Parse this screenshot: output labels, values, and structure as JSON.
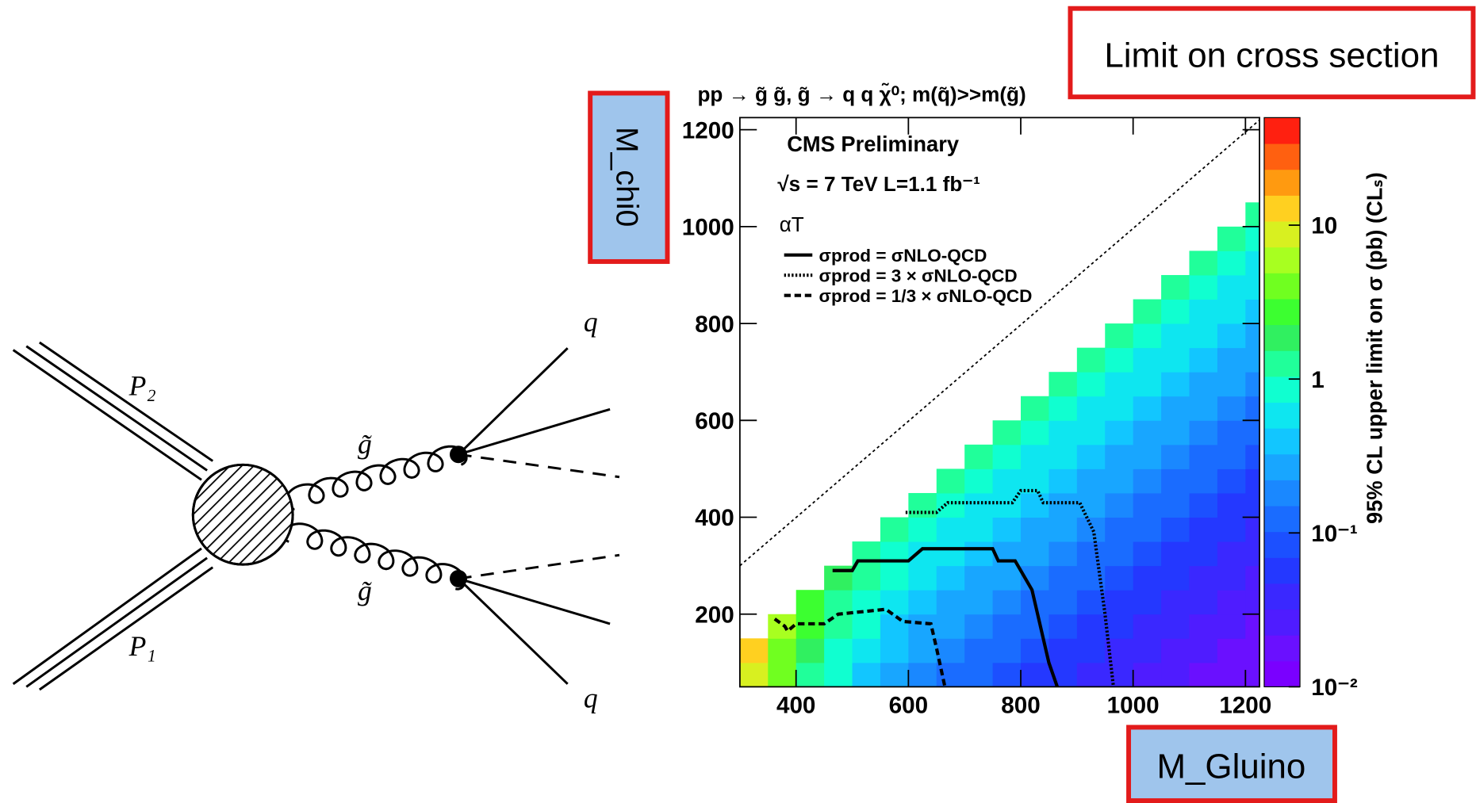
{
  "chart_data": {
    "type": "heatmap",
    "title": "pp → g̃ g̃, g̃ → q q χ̃⁰; m(q̃)>>m(g̃)",
    "xlim": [
      300,
      1225
    ],
    "ylim": [
      50,
      1225
    ],
    "xticks": [
      400,
      600,
      800,
      1000,
      1200
    ],
    "yticks": [
      200,
      400,
      600,
      800,
      1000,
      1200
    ],
    "x_edges": [
      300,
      350,
      400,
      450,
      500,
      550,
      600,
      650,
      700,
      750,
      800,
      850,
      900,
      950,
      1000,
      1050,
      1100,
      1150,
      1200,
      1225
    ],
    "y_edges": [
      50,
      100,
      150,
      200,
      250,
      300,
      350,
      400,
      450,
      500,
      550,
      600,
      650,
      700,
      750,
      800,
      850,
      900,
      950,
      1000,
      1050
    ],
    "z": [
      [
        9.5,
        3.7,
        1.4,
        0.71,
        0.44,
        0.27,
        0.19,
        0.14,
        0.11,
        0.087,
        0.068,
        0.052,
        0.041,
        0.032,
        0.025,
        0.022,
        0.019,
        0.017,
        0.015
      ],
      [
        12,
        4.8,
        1.9,
        0.91,
        0.56,
        0.35,
        0.24,
        0.19,
        0.14,
        0.11,
        0.087,
        0.068,
        0.052,
        0.041,
        0.032,
        0.025,
        0.022,
        0.019,
        0.017
      ],
      [
        null,
        6.2,
        2.4,
        1.2,
        0.72,
        0.45,
        0.31,
        0.24,
        0.19,
        0.14,
        0.11,
        0.087,
        0.068,
        0.052,
        0.041,
        0.032,
        0.025,
        0.022,
        0.019
      ],
      [
        null,
        null,
        3.1,
        1.5,
        0.93,
        0.58,
        0.4,
        0.31,
        0.24,
        0.19,
        0.14,
        0.11,
        0.087,
        0.068,
        0.052,
        0.041,
        0.032,
        0.025,
        0.022
      ],
      [
        null,
        null,
        null,
        1.9,
        1.2,
        0.74,
        0.51,
        0.4,
        0.31,
        0.24,
        0.19,
        0.14,
        0.11,
        0.087,
        0.068,
        0.052,
        0.041,
        0.032,
        0.025
      ],
      [
        null,
        null,
        null,
        null,
        1.5,
        0.95,
        0.66,
        0.51,
        0.4,
        0.31,
        0.24,
        0.19,
        0.14,
        0.11,
        0.087,
        0.068,
        0.052,
        0.041,
        0.032
      ],
      [
        null,
        null,
        null,
        null,
        null,
        1.2,
        0.85,
        0.66,
        0.51,
        0.4,
        0.31,
        0.24,
        0.19,
        0.14,
        0.11,
        0.087,
        0.068,
        0.052,
        0.041
      ],
      [
        null,
        null,
        null,
        null,
        null,
        null,
        1.1,
        0.85,
        0.66,
        0.51,
        0.4,
        0.31,
        0.24,
        0.19,
        0.14,
        0.11,
        0.087,
        0.068,
        0.052
      ],
      [
        null,
        null,
        null,
        null,
        null,
        null,
        null,
        1.1,
        0.85,
        0.66,
        0.51,
        0.4,
        0.31,
        0.24,
        0.19,
        0.14,
        0.11,
        0.087,
        0.068
      ],
      [
        null,
        null,
        null,
        null,
        null,
        null,
        null,
        null,
        1.1,
        0.85,
        0.66,
        0.51,
        0.4,
        0.31,
        0.24,
        0.19,
        0.14,
        0.11,
        0.087
      ],
      [
        null,
        null,
        null,
        null,
        null,
        null,
        null,
        null,
        null,
        1.1,
        0.85,
        0.66,
        0.51,
        0.4,
        0.31,
        0.24,
        0.19,
        0.14,
        0.11
      ],
      [
        null,
        null,
        null,
        null,
        null,
        null,
        null,
        null,
        null,
        null,
        1.1,
        0.85,
        0.66,
        0.51,
        0.4,
        0.31,
        0.24,
        0.19,
        0.14
      ],
      [
        null,
        null,
        null,
        null,
        null,
        null,
        null,
        null,
        null,
        null,
        null,
        1.1,
        0.85,
        0.66,
        0.51,
        0.4,
        0.31,
        0.24,
        0.19
      ],
      [
        null,
        null,
        null,
        null,
        null,
        null,
        null,
        null,
        null,
        null,
        null,
        null,
        1.1,
        0.85,
        0.66,
        0.51,
        0.4,
        0.31,
        0.24
      ],
      [
        null,
        null,
        null,
        null,
        null,
        null,
        null,
        null,
        null,
        null,
        null,
        null,
        null,
        1.1,
        0.85,
        0.66,
        0.51,
        0.4,
        0.31
      ],
      [
        null,
        null,
        null,
        null,
        null,
        null,
        null,
        null,
        null,
        null,
        null,
        null,
        null,
        null,
        1.1,
        0.85,
        0.66,
        0.51,
        0.4
      ],
      [
        null,
        null,
        null,
        null,
        null,
        null,
        null,
        null,
        null,
        null,
        null,
        null,
        null,
        null,
        null,
        1.1,
        0.85,
        0.66,
        0.51
      ],
      [
        null,
        null,
        null,
        null,
        null,
        null,
        null,
        null,
        null,
        null,
        null,
        null,
        null,
        null,
        null,
        null,
        1.1,
        0.85,
        0.66
      ],
      [
        null,
        null,
        null,
        null,
        null,
        null,
        null,
        null,
        null,
        null,
        null,
        null,
        null,
        null,
        null,
        null,
        null,
        1.1,
        0.85
      ],
      [
        null,
        null,
        null,
        null,
        null,
        null,
        null,
        null,
        null,
        null,
        null,
        null,
        null,
        null,
        null,
        null,
        null,
        null,
        1.1
      ]
    ],
    "zlog": true,
    "zlim": [
      0.01,
      50
    ],
    "zticks": [
      10,
      1,
      {
        "value": 0.1,
        "label": "10⁻¹"
      },
      {
        "value": 0.01,
        "label": "10⁻²"
      }
    ],
    "zlabel": "95% CL upper limit on σ (pb) (CLₛ)",
    "palette": [
      "#7a00ff",
      "#6a10ff",
      "#4f1cff",
      "#3a28ff",
      "#2438ff",
      "#1c50ff",
      "#1a6cff",
      "#1a88ff",
      "#18a6ff",
      "#12c6ff",
      "#0ee6f0",
      "#10ffd0",
      "#20ff9a",
      "#30f060",
      "#3cff30",
      "#70ff20",
      "#a8ff20",
      "#d8f020",
      "#ffd020",
      "#ff9a10",
      "#ff6010",
      "#ff2010"
    ],
    "annotations": [
      "CMS Preliminary",
      "√s = 7 TeV L=1.1 fb⁻¹",
      "αT"
    ],
    "series": [
      {
        "name": "σprod = σNLO-QCD",
        "color": "#000000",
        "style": "solid",
        "x": [
          465,
          500,
          510,
          600,
          625,
          750,
          760,
          790,
          820,
          850,
          865
        ],
        "y": [
          290,
          290,
          310,
          310,
          335,
          335,
          310,
          310,
          250,
          100,
          50
        ]
      },
      {
        "name": "σprod = 3 × σNLO-QCD",
        "color": "#000000",
        "style": "dotted",
        "x": [
          595,
          650,
          670,
          785,
          800,
          830,
          840,
          905,
          930,
          950,
          965
        ],
        "y": [
          410,
          410,
          430,
          430,
          455,
          455,
          430,
          430,
          370,
          200,
          50
        ]
      },
      {
        "name": "σprod = 1/3 × σNLO-QCD",
        "color": "#000000",
        "style": "dashed",
        "x": [
          362,
          380,
          385,
          400,
          450,
          475,
          560,
          590,
          640,
          650,
          665
        ],
        "y": [
          190,
          175,
          165,
          180,
          180,
          200,
          210,
          185,
          180,
          130,
          50
        ]
      }
    ],
    "diagonal": {
      "x": [
        300,
        1225
      ],
      "y": [
        300,
        1220
      ]
    }
  },
  "callouts": {
    "cross_section": "Limit on cross section",
    "y_axis": "M_chi0",
    "x_axis": "M_Gluino"
  },
  "diagram": {
    "p2": "P₂",
    "p1": "P₁",
    "gluino_top": "g̃",
    "gluino_bottom": "g̃",
    "quark_top": "q",
    "quark_bottom": "q"
  }
}
